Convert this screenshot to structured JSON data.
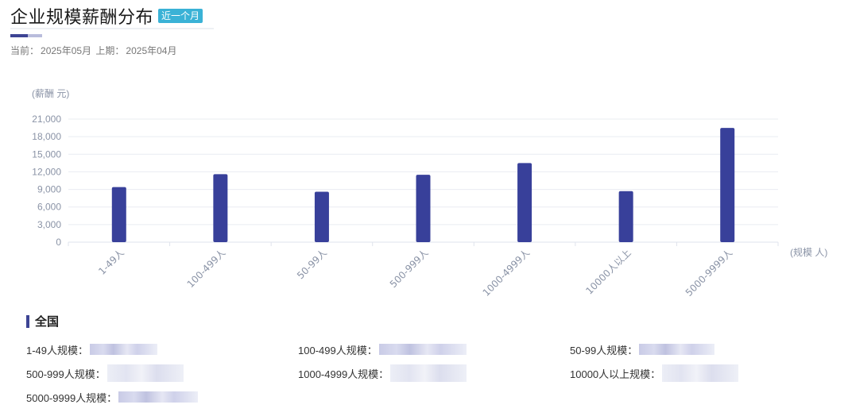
{
  "header": {
    "title": "企业规模薪酬分布",
    "badge": "近一个月",
    "current_label": "当前：",
    "current_value": "2025年05月",
    "previous_label": "上期：",
    "previous_value": "2025年04月"
  },
  "chart_data": {
    "type": "bar",
    "ylabel": "(薪酬 元)",
    "xlabel": "(规模 人)",
    "categories": [
      "1-49人",
      "100-499人",
      "50-99人",
      "500-999人",
      "1000-4999人",
      "10000人以上",
      "5000-9999人"
    ],
    "values": [
      9400,
      11600,
      8600,
      11500,
      13500,
      8700,
      19500
    ],
    "ylim": [
      0,
      21000
    ],
    "yticks": [
      0,
      3000,
      6000,
      9000,
      12000,
      15000,
      18000,
      21000
    ],
    "ytick_labels": [
      "0",
      "3,000",
      "6,000",
      "9,000",
      "12,000",
      "15,000",
      "18,000",
      "21,000"
    ],
    "grid": true,
    "bar_color": "#38409a"
  },
  "section": {
    "title": "全国"
  },
  "stats": [
    {
      "label": "1-49人规模："
    },
    {
      "label": "100-499人规模："
    },
    {
      "label": "50-99人规模："
    },
    {
      "label": "500-999人规模："
    },
    {
      "label": "1000-4999人规模："
    },
    {
      "label": "10000人以上规模："
    },
    {
      "label": "5000-9999人规模："
    }
  ]
}
